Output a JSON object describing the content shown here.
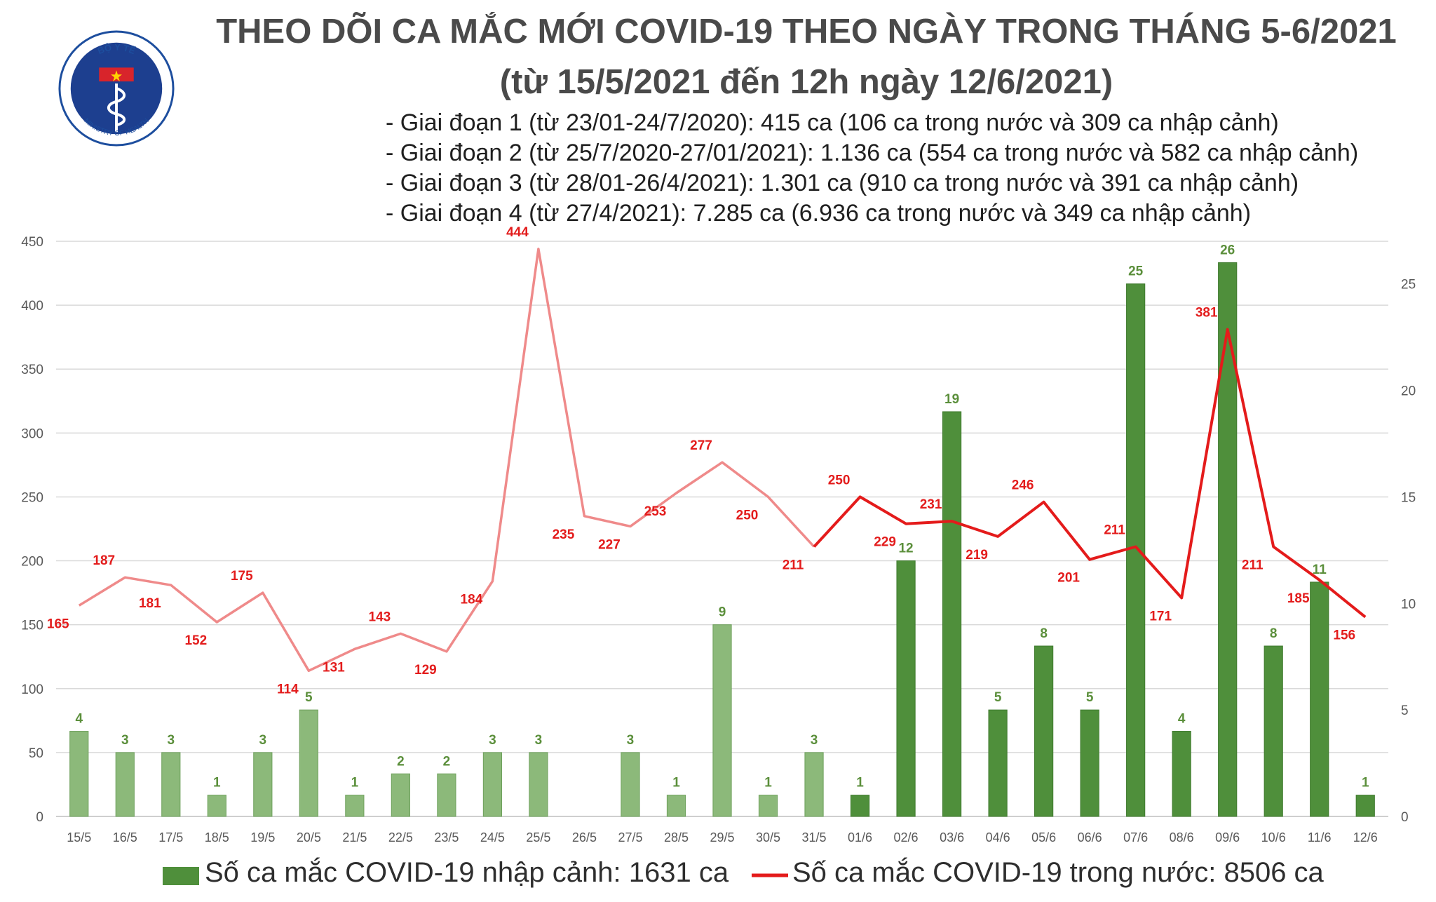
{
  "header": {
    "title_line1": "THEO DÕI CA MẮC MỚI COVID-19 THEO NGÀY TRONG THÁNG 5-6/2021",
    "title_line2": "(từ 15/5/2021 đến 12h ngày 12/6/2021)",
    "info_lines": [
      "- Giai đoạn 1 (từ 23/01-24/7/2020): 415 ca (106 ca trong nước và 309 ca nhập cảnh)",
      "- Giai đoạn 2 (từ 25/7/2020-27/01/2021): 1.136 ca (554 ca trong nước và 582 ca nhập cảnh)",
      "- Giai đoạn 3 (từ 28/01-26/4/2021): 1.301 ca (910 ca trong nước và 391 ca nhập cảnh)",
      "- Giai đoạn 4 (từ 27/4/2021): 7.285 ca (6.936 ca trong nước và 349 ca nhập cảnh)"
    ]
  },
  "logo": {
    "top_text": "BỘ Y TẾ",
    "bottom_text": "MINISTRY OF HEALTH"
  },
  "colors": {
    "bar_light": "#8cb97a",
    "bar_dark": "#4f8f3b",
    "line_light": "#ef8a8a",
    "line_dark": "#e41b1b",
    "label_red": "#e31c1c",
    "label_green": "#5b8f3b",
    "grid": "#d9d9d9",
    "title": "#4a4a4a"
  },
  "legend": {
    "bars_label": "Số ca mắc COVID-19 nhập cảnh: 1631 ca",
    "line_label": "Số ca mắc COVID-19 trong nước: 8506 ca"
  },
  "chart_data": {
    "type": "bar+line",
    "categories": [
      "15/5",
      "16/5",
      "17/5",
      "18/5",
      "19/5",
      "20/5",
      "21/5",
      "22/5",
      "23/5",
      "24/5",
      "25/5",
      "26/5",
      "27/5",
      "28/5",
      "29/5",
      "30/5",
      "31/5",
      "01/6",
      "02/6",
      "03/6",
      "04/6",
      "05/6",
      "06/6",
      "07/6",
      "08/6",
      "09/6",
      "10/6",
      "11/6",
      "12/6"
    ],
    "series": [
      {
        "name": "Số ca mắc COVID-19 nhập cảnh: 1631 ca",
        "type": "bar",
        "axis": "right",
        "values": [
          4,
          3,
          3,
          1,
          3,
          5,
          1,
          2,
          2,
          3,
          3,
          null,
          3,
          1,
          9,
          1,
          3,
          1,
          12,
          19,
          5,
          8,
          5,
          25,
          4,
          26,
          8,
          11,
          1
        ]
      },
      {
        "name": "Số ca mắc COVID-19 trong nước: 8506 ca",
        "type": "line",
        "axis": "left",
        "values": [
          165,
          187,
          181,
          152,
          175,
          114,
          131,
          143,
          129,
          184,
          444,
          235,
          227,
          253,
          277,
          250,
          211,
          250,
          229,
          231,
          219,
          246,
          201,
          211,
          171,
          381,
          211,
          185,
          156
        ]
      }
    ],
    "dark_from_index": 17,
    "left_axis": {
      "ylim": [
        0,
        450
      ],
      "ticks": [
        0,
        50,
        100,
        150,
        200,
        250,
        300,
        350,
        400,
        450
      ]
    },
    "right_axis": {
      "ylim": [
        0,
        27
      ],
      "ticks": [
        0,
        5,
        10,
        15,
        20,
        25
      ]
    },
    "grid": true,
    "legend_position": "bottom"
  }
}
